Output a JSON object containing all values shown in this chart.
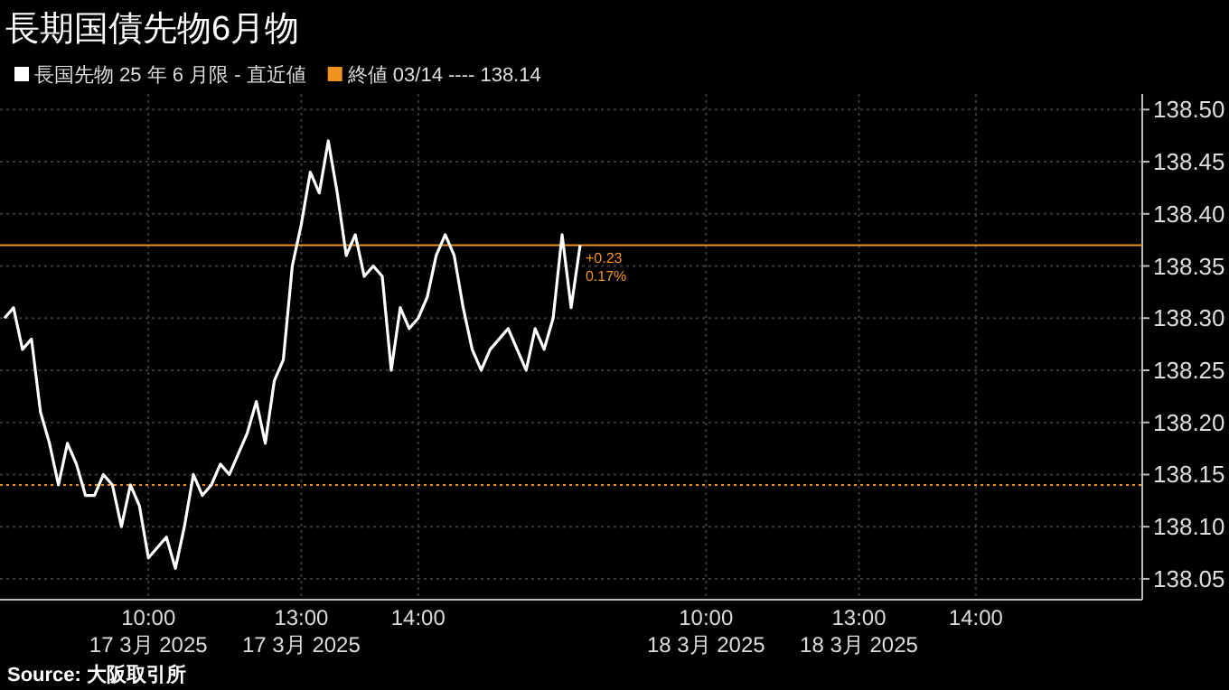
{
  "chart_data": {
    "type": "line",
    "title": "長期国債先物6月物",
    "categories": [
      null,
      null,
      null,
      null,
      null,
      null,
      null,
      null,
      null,
      null,
      null,
      null,
      null,
      null,
      null,
      null,
      "10:00\n17 3月 2025",
      null,
      null,
      null,
      null,
      null,
      null,
      null,
      null,
      null,
      null,
      null,
      null,
      null,
      null,
      null,
      null,
      "13:00\n17 3月 2025",
      null,
      null,
      null,
      null,
      null,
      null,
      null,
      null,
      null,
      null,
      null,
      null,
      "14:00",
      null,
      null,
      null,
      null,
      null,
      null,
      null,
      null,
      null,
      null,
      null,
      null,
      null,
      null,
      null,
      null,
      null,
      null,
      null,
      null,
      null,
      null,
      null,
      null,
      null,
      null,
      null,
      null,
      null,
      null,
      null,
      "10:00\n18 3月 2025",
      null,
      null,
      null,
      null,
      null,
      null,
      null,
      null,
      null,
      null,
      null,
      null,
      null,
      null,
      null,
      null,
      "13:00\n18 3月 2025",
      null,
      null,
      null,
      null,
      null,
      null,
      null,
      null,
      null,
      null,
      null,
      null,
      "14:00",
      null,
      null,
      null,
      null,
      null,
      null,
      null,
      null,
      null,
      null,
      null,
      null,
      null,
      null,
      null,
      null,
      null,
      null
    ],
    "series": [
      {
        "name": "長国先物 25 年 6 月限 - 直近値",
        "color": "#ffffff",
        "values": [
          138.3,
          138.31,
          138.27,
          138.28,
          138.21,
          138.18,
          138.14,
          138.18,
          138.16,
          138.13,
          138.13,
          138.15,
          138.14,
          138.1,
          138.14,
          138.12,
          138.07,
          138.08,
          138.09,
          138.06,
          138.1,
          138.15,
          138.13,
          138.14,
          138.16,
          138.15,
          138.17,
          138.19,
          138.22,
          138.18,
          138.24,
          138.26,
          138.35,
          138.39,
          138.44,
          138.42,
          138.47,
          138.42,
          138.36,
          138.38,
          138.34,
          138.35,
          138.34,
          138.25,
          138.31,
          138.29,
          138.3,
          138.32,
          138.36,
          138.38,
          138.36,
          138.31,
          138.27,
          138.25,
          138.27,
          138.28,
          138.29,
          138.27,
          138.25,
          138.29,
          138.27,
          138.3,
          138.38,
          138.31,
          138.37,
          null,
          null,
          null,
          null,
          null,
          null,
          null,
          null,
          null,
          null,
          null,
          null,
          null,
          null,
          null,
          null,
          null,
          null,
          null,
          null,
          null,
          null,
          null,
          null,
          null,
          null,
          null,
          null,
          null,
          null,
          null,
          null,
          null,
          null,
          null,
          null,
          null,
          null,
          null,
          null,
          null,
          null,
          null,
          null,
          null,
          null,
          null,
          null,
          null,
          null,
          null,
          null,
          null,
          null,
          null,
          null,
          null,
          null,
          null,
          null,
          null,
          null
        ]
      }
    ],
    "ref_lines": [
      {
        "axis": "y",
        "value": 138.14,
        "label": "終値 03/14 ---- 138.14",
        "color": "#f0921e",
        "line_style": "dotted"
      },
      {
        "axis": "y",
        "value": 138.37,
        "color": "#f0921e",
        "line_style": "solid"
      }
    ],
    "annotations": [
      {
        "text": "+0.23",
        "y": 138.37
      },
      {
        "text": "0.17%",
        "y": 138.37
      },
      "Source: 大阪取引所"
    ],
    "ylim": [
      138.03,
      138.515
    ],
    "yticks": [
      138.05,
      {
        "value": 138.1,
        "label": "138.10"
      },
      138.15,
      {
        "value": 138.2,
        "label": "138.20"
      },
      138.25,
      {
        "value": 138.3,
        "label": "138.30"
      },
      138.35,
      {
        "value": 138.4,
        "label": "138.40"
      },
      138.45,
      {
        "value": 138.5,
        "label": "138.50"
      }
    ],
    "grid": true,
    "legend": "top left",
    "line_style": "solid",
    "marker": "none"
  }
}
